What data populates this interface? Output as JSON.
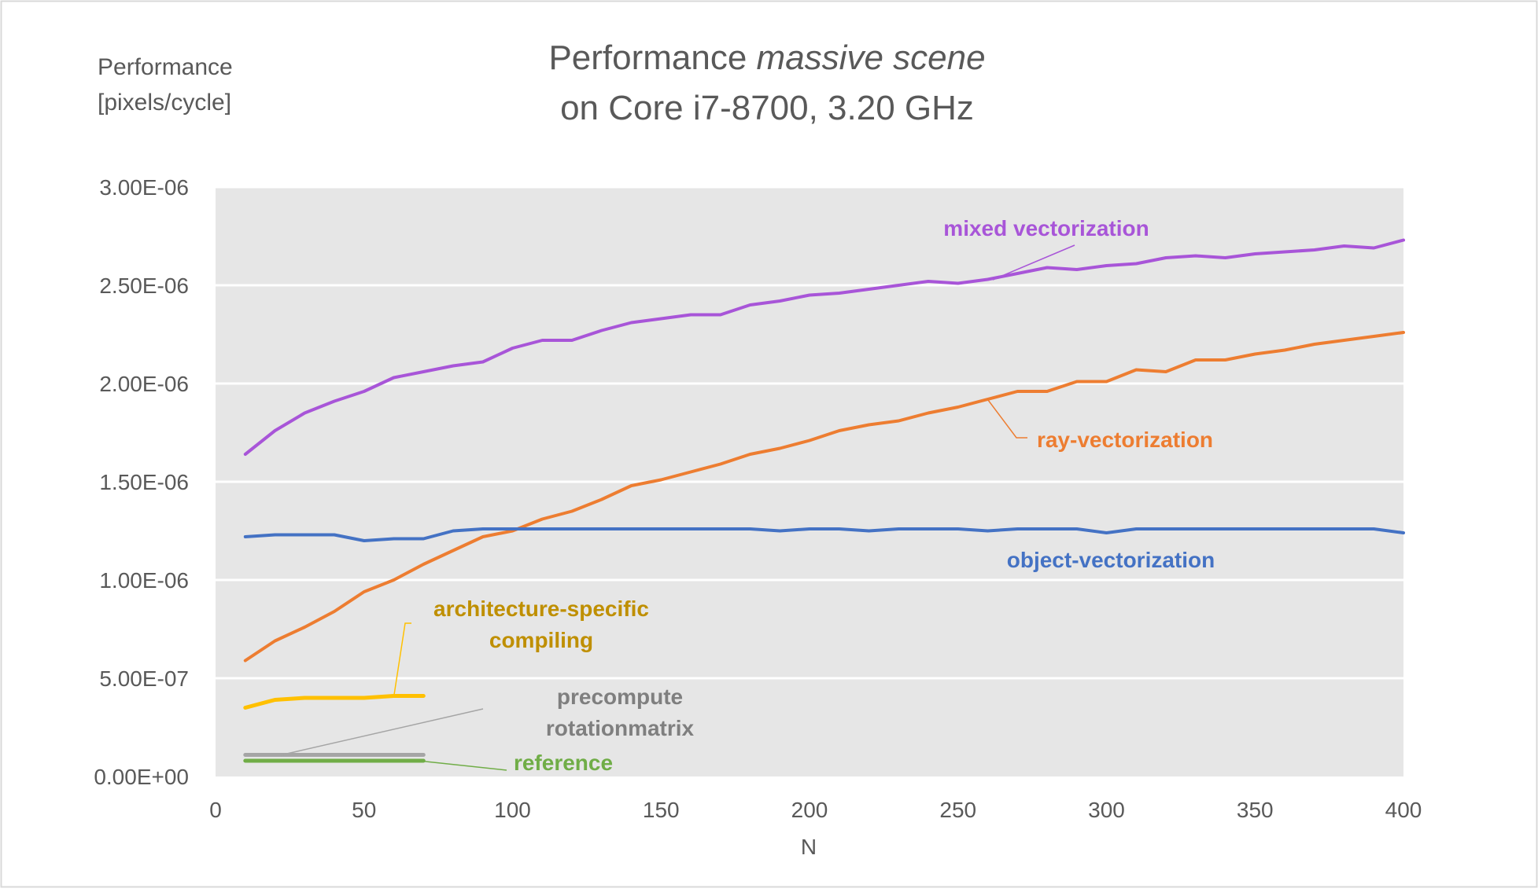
{
  "chart_data": {
    "type": "line",
    "title_line1_prefix": "Performance ",
    "title_line1_italic": "massive scene",
    "title_line2": "on Core i7-8700, 3.20 GHz",
    "ylabel_line1": "Performance",
    "ylabel_line2": "[pixels/cycle]",
    "xlabel": "N",
    "xlim": [
      0,
      400
    ],
    "ylim": [
      0,
      3e-06
    ],
    "x_ticks": [
      0,
      50,
      100,
      150,
      200,
      250,
      300,
      350,
      400
    ],
    "x_tick_labels": [
      "0",
      "50",
      "100",
      "150",
      "200",
      "250",
      "300",
      "350",
      "400"
    ],
    "y_ticks": [
      0,
      5e-07,
      1e-06,
      1.5e-06,
      2e-06,
      2.5e-06,
      3e-06
    ],
    "y_tick_labels": [
      "0.00E+00",
      "5.00E-07",
      "1.00E-06",
      "1.50E-06",
      "2.00E-06",
      "2.50E-06",
      "3.00E-06"
    ],
    "grid": "horizontal",
    "plot_background": "#e6e6e6",
    "series": [
      {
        "name": "mixed vectorization",
        "label_lines": [
          "mixed vectorization"
        ],
        "color": "#a855d8",
        "x": [
          10,
          20,
          30,
          40,
          50,
          60,
          70,
          80,
          90,
          100,
          110,
          120,
          130,
          140,
          150,
          160,
          170,
          180,
          190,
          200,
          210,
          220,
          230,
          240,
          250,
          260,
          270,
          280,
          290,
          300,
          310,
          320,
          330,
          340,
          350,
          360,
          370,
          380,
          390,
          400
        ],
        "y": [
          1.64e-06,
          1.76e-06,
          1.85e-06,
          1.91e-06,
          1.96e-06,
          2.03e-06,
          2.06e-06,
          2.09e-06,
          2.11e-06,
          2.18e-06,
          2.22e-06,
          2.22e-06,
          2.27e-06,
          2.31e-06,
          2.33e-06,
          2.35e-06,
          2.35e-06,
          2.4e-06,
          2.42e-06,
          2.45e-06,
          2.46e-06,
          2.48e-06,
          2.5e-06,
          2.52e-06,
          2.51e-06,
          2.53e-06,
          2.56e-06,
          2.59e-06,
          2.58e-06,
          2.6e-06,
          2.61e-06,
          2.64e-06,
          2.65e-06,
          2.64e-06,
          2.66e-06,
          2.67e-06,
          2.68e-06,
          2.7e-06,
          2.69e-06,
          2.73e-06
        ]
      },
      {
        "name": "ray-vectorization",
        "label_lines": [
          "ray-vectorization"
        ],
        "color": "#ed7d31",
        "x": [
          10,
          20,
          30,
          40,
          50,
          60,
          70,
          80,
          90,
          100,
          110,
          120,
          130,
          140,
          150,
          160,
          170,
          180,
          190,
          200,
          210,
          220,
          230,
          240,
          250,
          260,
          270,
          280,
          290,
          300,
          310,
          320,
          330,
          340,
          350,
          360,
          370,
          380,
          390,
          400
        ],
        "y": [
          5.9e-07,
          6.9e-07,
          7.6e-07,
          8.4e-07,
          9.4e-07,
          1e-06,
          1.08e-06,
          1.15e-06,
          1.22e-06,
          1.25e-06,
          1.31e-06,
          1.35e-06,
          1.41e-06,
          1.48e-06,
          1.51e-06,
          1.55e-06,
          1.59e-06,
          1.64e-06,
          1.67e-06,
          1.71e-06,
          1.76e-06,
          1.79e-06,
          1.81e-06,
          1.85e-06,
          1.88e-06,
          1.92e-06,
          1.96e-06,
          1.96e-06,
          2.01e-06,
          2.01e-06,
          2.07e-06,
          2.06e-06,
          2.12e-06,
          2.12e-06,
          2.15e-06,
          2.17e-06,
          2.2e-06,
          2.22e-06,
          2.24e-06,
          2.26e-06
        ]
      },
      {
        "name": "object-vectorization",
        "label_lines": [
          "object-vectorization"
        ],
        "color": "#4472c4",
        "x": [
          10,
          20,
          30,
          40,
          50,
          60,
          70,
          80,
          90,
          100,
          110,
          120,
          130,
          140,
          150,
          160,
          170,
          180,
          190,
          200,
          210,
          220,
          230,
          240,
          250,
          260,
          270,
          280,
          290,
          300,
          310,
          320,
          330,
          340,
          350,
          360,
          370,
          380,
          390,
          400
        ],
        "y": [
          1.22e-06,
          1.23e-06,
          1.23e-06,
          1.23e-06,
          1.2e-06,
          1.21e-06,
          1.21e-06,
          1.25e-06,
          1.26e-06,
          1.26e-06,
          1.26e-06,
          1.26e-06,
          1.26e-06,
          1.26e-06,
          1.26e-06,
          1.26e-06,
          1.26e-06,
          1.26e-06,
          1.25e-06,
          1.26e-06,
          1.26e-06,
          1.25e-06,
          1.26e-06,
          1.26e-06,
          1.26e-06,
          1.25e-06,
          1.26e-06,
          1.26e-06,
          1.26e-06,
          1.24e-06,
          1.26e-06,
          1.26e-06,
          1.26e-06,
          1.26e-06,
          1.26e-06,
          1.26e-06,
          1.26e-06,
          1.26e-06,
          1.26e-06,
          1.24e-06
        ]
      },
      {
        "name": "architecture-specific compiling",
        "label_lines": [
          "architecture-specific",
          "compiling"
        ],
        "color": "#ffc000",
        "label_color": "#bf8f00",
        "x": [
          10,
          20,
          30,
          40,
          50,
          60,
          70
        ],
        "y": [
          3.5e-07,
          3.9e-07,
          4e-07,
          4e-07,
          4e-07,
          4.1e-07,
          4.1e-07
        ]
      },
      {
        "name": "precompute rotationmatrix",
        "label_lines": [
          "precompute",
          "rotationmatrix"
        ],
        "color": "#a5a5a5",
        "label_color": "#7f7f7f",
        "x": [
          10,
          20,
          30,
          40,
          50,
          60,
          70
        ],
        "y": [
          1.1e-07,
          1.1e-07,
          1.1e-07,
          1.1e-07,
          1.1e-07,
          1.1e-07,
          1.1e-07
        ]
      },
      {
        "name": "reference",
        "label_lines": [
          "reference"
        ],
        "color": "#70ad47",
        "x": [
          10,
          20,
          30,
          40,
          50,
          60,
          70
        ],
        "y": [
          8e-08,
          8e-08,
          8e-08,
          8e-08,
          8e-08,
          8e-08,
          8e-08
        ]
      }
    ]
  }
}
